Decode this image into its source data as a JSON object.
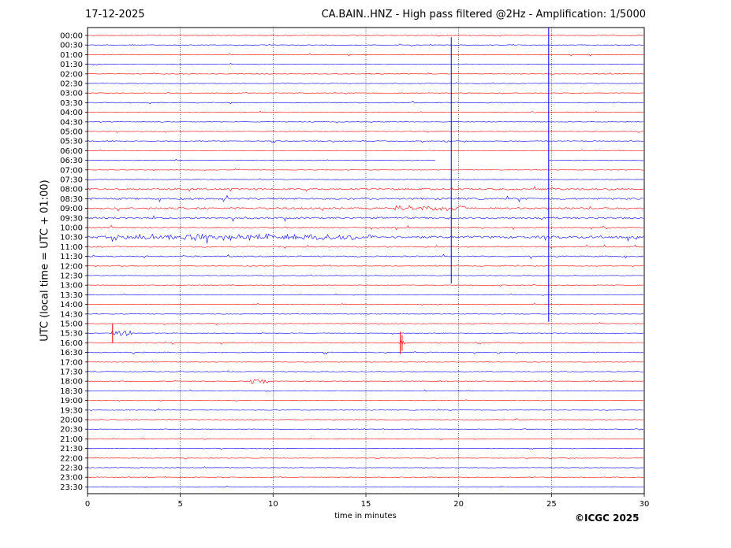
{
  "header": {
    "date": "17-12-2025",
    "title": "CA.BAIN..HNZ - High pass filtered @2Hz - Amplification: 1/5000"
  },
  "footer": {
    "copyright": "©ICGC 2025"
  },
  "chart_data": {
    "type": "line",
    "title": "CA.BAIN..HNZ - High pass filtered @2Hz - Amplification: 1/5000",
    "xlabel": "time in minutes",
    "ylabel": "UTC (local time = UTC + 01:00)",
    "xlim": [
      0,
      30
    ],
    "x_ticks": [
      "0",
      "5",
      "10",
      "15",
      "20",
      "25",
      "30"
    ],
    "grid_x": true,
    "row_labels": [
      "00:00",
      "00:30",
      "01:00",
      "01:30",
      "02:00",
      "02:30",
      "03:00",
      "03:30",
      "04:00",
      "04:30",
      "05:00",
      "05:30",
      "06:00",
      "06:30",
      "07:00",
      "07:30",
      "08:00",
      "08:30",
      "09:00",
      "09:30",
      "10:00",
      "10:30",
      "11:00",
      "11:30",
      "12:00",
      "12:30",
      "13:00",
      "13:30",
      "14:00",
      "14:30",
      "15:00",
      "15:30",
      "16:00",
      "16:30",
      "17:00",
      "17:30",
      "18:00",
      "18:30",
      "19:00",
      "19:30",
      "20:00",
      "20:30",
      "21:00",
      "21:30",
      "22:00",
      "22:30",
      "23:00",
      "23:30"
    ],
    "trace_colors": [
      "#ff0000",
      "#0000ff"
    ],
    "row_noise_level": [
      1,
      1,
      1,
      1,
      1,
      1,
      1,
      1.5,
      1,
      1,
      1,
      1.5,
      1,
      1,
      1,
      1,
      3,
      3,
      3,
      3,
      2,
      4,
      2,
      2,
      1,
      1,
      1,
      1,
      1,
      1,
      1,
      1,
      1.5,
      1.5,
      1,
      1,
      1,
      1,
      1,
      1,
      1,
      1,
      1,
      1,
      1,
      1,
      1,
      1
    ],
    "events": [
      {
        "row": "08:00",
        "start_min": 19.6,
        "end_min": 19.7,
        "type": "spike"
      },
      {
        "row": "09:00",
        "start_min": 16.5,
        "end_min": 20.5,
        "type": "burst"
      },
      {
        "row": "10:30",
        "start_min": 1.5,
        "end_min": 15.5,
        "type": "burst"
      },
      {
        "row": "15:30",
        "start_min": 1.2,
        "end_min": 2.4,
        "type": "burst"
      },
      {
        "row": "16:00",
        "start_min": 16.7,
        "end_min": 17.1,
        "type": "burst"
      },
      {
        "row": "18:00",
        "start_min": 8.7,
        "end_min": 9.7,
        "type": "burst"
      }
    ],
    "vertical_spikes": [
      {
        "x_min": 19.6,
        "from_row": "00:30",
        "to_row": "12:30",
        "color": "#0000ff"
      },
      {
        "x_min": 24.85,
        "from_row": "00:00",
        "to_row": "14:30",
        "color": "#0000ff"
      }
    ],
    "gaps": [
      {
        "row": "06:30",
        "start_min": 18.8,
        "end_min": 24.8
      }
    ]
  }
}
